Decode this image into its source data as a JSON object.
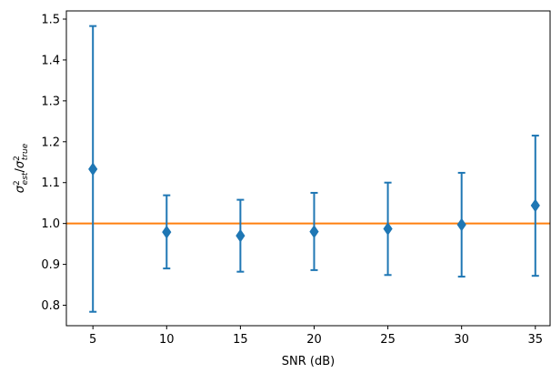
{
  "chart_data": {
    "type": "scatter",
    "xlabel": "SNR (dB)",
    "ylabel": {
      "base": "σ",
      "num_sup": "2",
      "num_sub": "est",
      "slash": "/",
      "den_sup": "2",
      "den_sub": "true"
    },
    "xlim": [
      3.2,
      36.0
    ],
    "ylim": [
      0.75,
      1.52
    ],
    "xticks": [
      5,
      10,
      15,
      20,
      25,
      30,
      35
    ],
    "xtick_labels": [
      "5",
      "10",
      "15",
      "20",
      "25",
      "30",
      "35"
    ],
    "yticks": [
      0.8,
      0.9,
      1.0,
      1.1,
      1.2,
      1.3,
      1.4,
      1.5
    ],
    "ytick_labels": [
      "0.8",
      "0.9",
      "1.0",
      "1.1",
      "1.2",
      "1.3",
      "1.4",
      "1.5"
    ],
    "grid": false,
    "reference_line": {
      "y": 1.0,
      "color": "#ff7f0e"
    },
    "series": [
      {
        "color": "#1f77b4",
        "marker": "diamond",
        "x": [
          5,
          10,
          15,
          20,
          25,
          30,
          35
        ],
        "y": [
          1.133,
          0.979,
          0.97,
          0.98,
          0.987,
          0.997,
          1.044
        ],
        "err_low": [
          0.784,
          0.89,
          0.882,
          0.886,
          0.874,
          0.87,
          0.872
        ],
        "err_high": [
          1.483,
          1.069,
          1.058,
          1.075,
          1.1,
          1.124,
          1.215
        ]
      }
    ]
  }
}
